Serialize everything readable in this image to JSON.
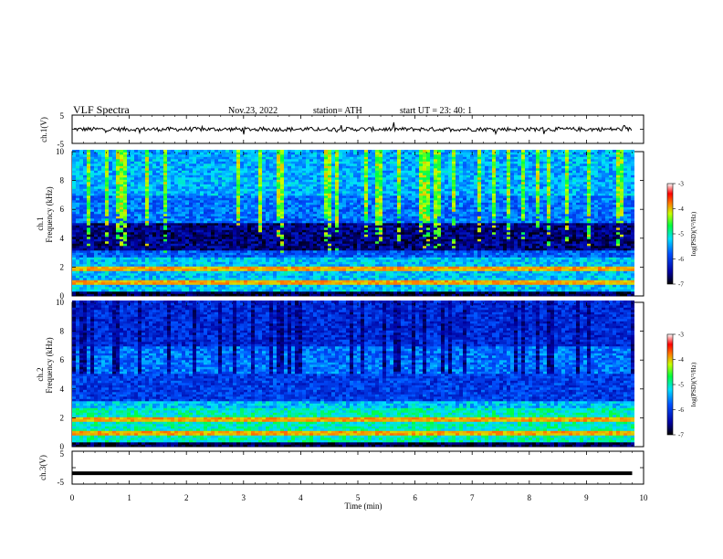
{
  "header": {
    "title": "VLF  Spectra",
    "date": "Nov.23, 2022",
    "station": "station= ATH",
    "start": "start  UT  =    23: 40: 1"
  },
  "chart_data": [
    {
      "type": "line",
      "name": "ch1-waveform",
      "ylabel": "ch.1(V)",
      "yticks": [
        "5",
        "-5"
      ],
      "ylim": [
        -5,
        5
      ],
      "xlim": [
        0,
        10
      ],
      "approx_level": 0,
      "approx_amplitude": 1.2
    },
    {
      "type": "heatmap",
      "name": "ch1-spectrogram",
      "ylabel": "ch.1\nFrequency  (kHz)",
      "ylabel_top": "ch.1",
      "ylabel_bottom": "Frequency  (kHz)",
      "yticks": [
        "0",
        "2",
        "4",
        "6",
        "8",
        "10"
      ],
      "ylim": [
        0,
        10
      ],
      "xlim": [
        0,
        9.8
      ],
      "colorbar": {
        "label": "log(PSD)(V²/Hz)",
        "ticks": [
          "-3",
          "-4",
          "-5",
          "-6",
          "-7"
        ],
        "range": [
          -7,
          -3
        ]
      }
    },
    {
      "type": "heatmap",
      "name": "ch2-spectrogram",
      "ylabel_top": "ch.2",
      "ylabel_bottom": "Frequency  (kHz)",
      "yticks": [
        "0",
        "2",
        "4",
        "6",
        "8",
        "10"
      ],
      "ylim": [
        0,
        10
      ],
      "xlim": [
        0,
        9.8
      ],
      "colorbar": {
        "label": "log(PSD)(V²/Hz)",
        "ticks": [
          "-3",
          "-4",
          "-5",
          "-6",
          "-7"
        ],
        "range": [
          -7,
          -3
        ]
      }
    },
    {
      "type": "line",
      "name": "ch3-waveform",
      "ylabel": "ch.3(V)",
      "yticks": [
        "5",
        "-5"
      ],
      "ylim": [
        -5,
        5
      ],
      "xlim": [
        0,
        10
      ],
      "approx_level": -1.7
    }
  ],
  "xaxis": {
    "label": "Time  (min)",
    "ticks": [
      "0",
      "1",
      "2",
      "3",
      "4",
      "5",
      "6",
      "7",
      "8",
      "9",
      "10"
    ],
    "range": [
      0,
      10
    ]
  },
  "colors": {
    "trace": "#000000",
    "axes": "#000000"
  }
}
